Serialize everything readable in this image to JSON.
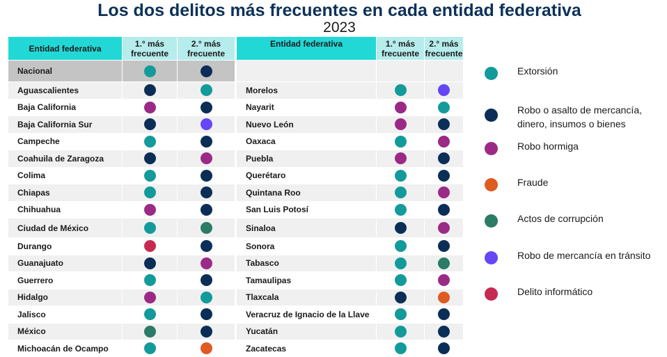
{
  "title": "Los dos delitos más frecuentes en cada entidad federativa",
  "subtitle": "2023",
  "headers": {
    "entity": "Entidad federativa",
    "first": "1.° más frecuente",
    "second": "2.° más frecuente"
  },
  "crimes": {
    "extorsion": {
      "label": "Extorsión",
      "color": "#139a9b"
    },
    "robo_asalto": {
      "label": "Robo o asalto de mercancía, dinero, insumos o bienes",
      "color": "#0b2e57"
    },
    "robo_hormiga": {
      "label": "Robo hormiga",
      "color": "#9b2a86"
    },
    "fraude": {
      "label": "Fraude",
      "color": "#de5b22"
    },
    "corrupcion": {
      "label": "Actos de corrupción",
      "color": "#2b7b66"
    },
    "robo_transito": {
      "label": "Robo de mercancía en tránsito",
      "color": "#6646f5"
    },
    "informatico": {
      "label": "Delito informático",
      "color": "#c62a52"
    }
  },
  "legend_order": [
    "extorsion",
    "robo_asalto",
    "robo_hormiga",
    "fraude",
    "corrupcion",
    "robo_transito",
    "informatico"
  ],
  "chart_data": {
    "type": "table",
    "title": "Los dos delitos más frecuentes en cada entidad federativa",
    "subtitle": "2023",
    "columns": [
      "Entidad federativa",
      "1.° más frecuente",
      "2.° más frecuente"
    ],
    "national": {
      "entity": "Nacional",
      "first": "extorsion",
      "second": "robo_asalto"
    },
    "left_rows": [
      {
        "entity": "Aguascalientes",
        "first": "robo_asalto",
        "second": "extorsion"
      },
      {
        "entity": "Baja California",
        "first": "robo_hormiga",
        "second": "robo_asalto"
      },
      {
        "entity": "Baja California Sur",
        "first": "robo_asalto",
        "second": "robo_transito"
      },
      {
        "entity": "Campeche",
        "first": "extorsion",
        "second": "robo_asalto"
      },
      {
        "entity": "Coahuila de Zaragoza",
        "first": "robo_asalto",
        "second": "robo_hormiga"
      },
      {
        "entity": "Colima",
        "first": "extorsion",
        "second": "robo_asalto"
      },
      {
        "entity": "Chiapas",
        "first": "extorsion",
        "second": "robo_asalto"
      },
      {
        "entity": "Chihuahua",
        "first": "robo_hormiga",
        "second": "robo_asalto"
      },
      {
        "entity": "Ciudad de México",
        "first": "extorsion",
        "second": "corrupcion"
      },
      {
        "entity": "Durango",
        "first": "informatico",
        "second": "robo_asalto"
      },
      {
        "entity": "Guanajuato",
        "first": "robo_asalto",
        "second": "robo_hormiga"
      },
      {
        "entity": "Guerrero",
        "first": "extorsion",
        "second": "robo_asalto"
      },
      {
        "entity": "Hidalgo",
        "first": "robo_hormiga",
        "second": "extorsion"
      },
      {
        "entity": "Jalisco",
        "first": "extorsion",
        "second": "robo_asalto"
      },
      {
        "entity": "México",
        "first": "corrupcion",
        "second": "robo_asalto"
      },
      {
        "entity": "Michoacán de Ocampo",
        "first": "extorsion",
        "second": "fraude"
      }
    ],
    "right_rows": [
      {
        "entity": "Morelos",
        "first": "extorsion",
        "second": "robo_transito"
      },
      {
        "entity": "Nayarit",
        "first": "robo_hormiga",
        "second": "extorsion"
      },
      {
        "entity": "Nuevo León",
        "first": "robo_hormiga",
        "second": "robo_asalto"
      },
      {
        "entity": "Oaxaca",
        "first": "extorsion",
        "second": "robo_hormiga"
      },
      {
        "entity": "Puebla",
        "first": "robo_hormiga",
        "second": "robo_asalto"
      },
      {
        "entity": "Querétaro",
        "first": "extorsion",
        "second": "robo_asalto"
      },
      {
        "entity": "Quintana Roo",
        "first": "extorsion",
        "second": "robo_hormiga"
      },
      {
        "entity": "San Luis Potosí",
        "first": "extorsion",
        "second": "robo_asalto"
      },
      {
        "entity": "Sinaloa",
        "first": "robo_asalto",
        "second": "robo_hormiga"
      },
      {
        "entity": "Sonora",
        "first": "extorsion",
        "second": "robo_asalto"
      },
      {
        "entity": "Tabasco",
        "first": "extorsion",
        "second": "corrupcion"
      },
      {
        "entity": "Tamaulipas",
        "first": "extorsion",
        "second": "robo_hormiga"
      },
      {
        "entity": "Tlaxcala",
        "first": "robo_asalto",
        "second": "fraude"
      },
      {
        "entity": "Veracruz de Ignacio de la Llave",
        "first": "extorsion",
        "second": "robo_asalto"
      },
      {
        "entity": "Yucatán",
        "first": "extorsion",
        "second": "robo_asalto"
      },
      {
        "entity": "Zacatecas",
        "first": "extorsion",
        "second": "robo_asalto"
      }
    ]
  }
}
